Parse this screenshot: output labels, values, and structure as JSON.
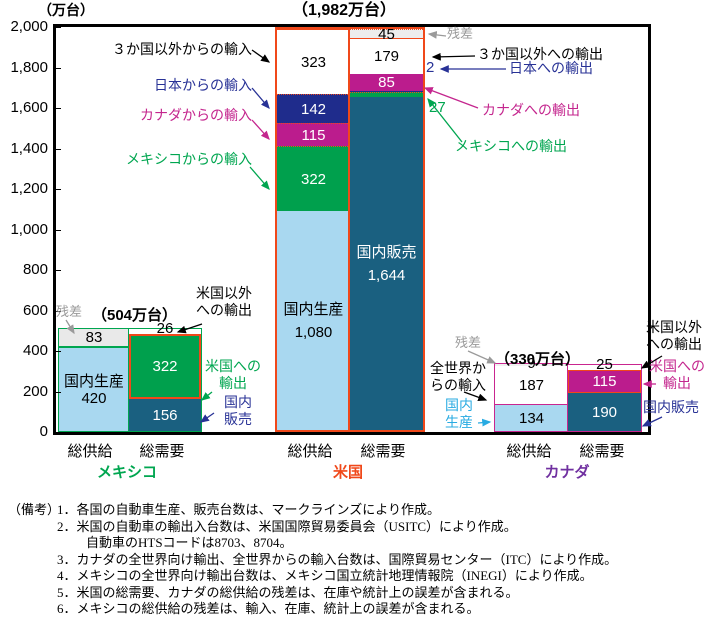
{
  "chart_data": {
    "type": "bar",
    "stacked": true,
    "unit_label": "（万台）",
    "ylabel": "",
    "ylim": [
      0,
      2000
    ],
    "ytick_step": 200,
    "yticks": [
      "0",
      "200",
      "400",
      "600",
      "800",
      "1,000",
      "1,200",
      "1,400",
      "1,600",
      "1,800",
      "2,000"
    ],
    "grid": false,
    "groups": [
      {
        "id": "mexico",
        "country": "メキシコ",
        "country_color": "#00A650",
        "total_label": "（504万台）",
        "bars": [
          {
            "id": "supply",
            "axis_label": "総供給",
            "total": 503,
            "segments": [
              {
                "name": "国内生産",
                "value": 420,
                "lines": [
                  "国内生産",
                  "420"
                ],
                "fill": "#A9D8F0",
                "text": "#000000",
                "border_top": "2px solid #00A650"
              },
              {
                "name": "残差",
                "value": 83,
                "lines": [
                  "83"
                ],
                "fill": "#E9E9E9",
                "text": "#000000"
              }
            ]
          },
          {
            "id": "demand",
            "axis_label": "総需要",
            "total": 504,
            "segments": [
              {
                "name": "国内販売",
                "value": 156,
                "lines": [
                  "156"
                ],
                "fill": "#1A6080",
                "text": "#FFFFFF"
              },
              {
                "name": "米国への輸出",
                "value": 322,
                "lines": [
                  "322"
                ],
                "fill": "#00A04D",
                "text": "#FFFFFF",
                "dots": true,
                "border": "2px solid #F0481A"
              },
              {
                "name": "米国以外への輸出",
                "value": 26,
                "lines": [
                  "26"
                ],
                "fill": "#FFFFFF",
                "text": "#000000",
                "label_above": true
              }
            ]
          }
        ]
      },
      {
        "id": "us",
        "country": "米国",
        "country_color": "#F0481A",
        "total_label": "（1,982万台）",
        "bars": [
          {
            "id": "supply",
            "axis_label": "総供給",
            "total": 1982,
            "segments": [
              {
                "name": "国内生産",
                "value": 1080,
                "lines": [
                  "国内生産",
                  "1,080"
                ],
                "fill": "#A9D8F0",
                "text": "#000000",
                "big": true
              },
              {
                "name": "メキシコからの輸入",
                "value": 322,
                "lines": [
                  "322"
                ],
                "fill": "#00A04D",
                "text": "#FFFFFF",
                "dots": true,
                "border_top": "1px dotted #F0481A"
              },
              {
                "name": "カナダからの輸入",
                "value": 115,
                "lines": [
                  "115"
                ],
                "fill": "#BB1C8D",
                "text": "#FFFFFF",
                "border_top": "1px dotted #F0481A"
              },
              {
                "name": "日本からの輸入",
                "value": 142,
                "lines": [
                  "142"
                ],
                "fill": "#1F2C8C",
                "text": "#FFFFFF",
                "dots": true,
                "border_top": "1px dotted #F0481A"
              },
              {
                "name": "３か国以外からの輸入",
                "value": 323,
                "lines": [
                  "323"
                ],
                "fill": "#FFFFFF",
                "text": "#000000",
                "border_top": "1px solid #F0481A"
              }
            ]
          },
          {
            "id": "demand",
            "axis_label": "総需要",
            "total": 1982,
            "segments": [
              {
                "name": "国内販売",
                "value": 1644,
                "lines": [
                  "国内販売",
                  "1,644"
                ],
                "fill": "#1A6080",
                "text": "#FFFFFF",
                "big": true
              },
              {
                "name": "メキシコへの輸出",
                "value": 27,
                "fill": "#00A04D",
                "dots": true,
                "border_top": "1px dotted #F0481A"
              },
              {
                "name": "日本への輸出",
                "value": 2,
                "fill": "#1F2C8C"
              },
              {
                "name": "カナダへの輸出",
                "value": 85,
                "lines": [
                  "85"
                ],
                "fill": "#BB1C8D",
                "text": "#FFFFFF"
              },
              {
                "name": "３か国以外への輸出",
                "value": 179,
                "lines": [
                  "179"
                ],
                "fill": "#FFFFFF",
                "text": "#000000",
                "border_top": "1px solid #F0481A"
              },
              {
                "name": "残差",
                "value": 45,
                "lines": [
                  "45"
                ],
                "fill": "#EDEDED",
                "text": "#000000",
                "border_top": "1px dotted #F0481A"
              }
            ]
          }
        ]
      },
      {
        "id": "canada",
        "country": "カナダ",
        "country_color": "#7030A0",
        "total_label": "（330万台）",
        "bars": [
          {
            "id": "supply",
            "axis_label": "総供給",
            "total": 330,
            "segments": [
              {
                "name": "国内生産",
                "value": 134,
                "lines": [
                  "134"
                ],
                "fill": "#A9D8F0",
                "text": "#000000",
                "border_top": "1.5px solid #C9258F"
              },
              {
                "name": "全世界からの輸入",
                "value": 187,
                "lines": [
                  "187"
                ],
                "fill": "#FFFFFF",
                "text": "#000000"
              },
              {
                "name": "残差",
                "value": 9,
                "lines": [
                  "9"
                ],
                "fill": "#F0F0F0",
                "text": "#000000",
                "label_above": true
              }
            ]
          },
          {
            "id": "demand",
            "axis_label": "総需要",
            "total": 330,
            "segments": [
              {
                "name": "国内販売",
                "value": 190,
                "lines": [
                  "190"
                ],
                "fill": "#1A6080",
                "text": "#FFFFFF"
              },
              {
                "name": "米国への輸出",
                "value": 115,
                "lines": [
                  "115"
                ],
                "fill": "#BB1C8D",
                "text": "#FFFFFF",
                "border": "1.5px solid #F0481A"
              },
              {
                "name": "米国以外への輸出",
                "value": 25,
                "lines": [
                  "25"
                ],
                "fill": "#FFFFFF",
                "text": "#000000",
                "label_above": true
              }
            ]
          }
        ]
      }
    ],
    "annotations": {
      "residual": "残差",
      "imports_other": "３か国以外からの輸入",
      "imports_japan": "日本からの輸入",
      "imports_canada": "カナダからの輸入",
      "imports_mexico": "メキシコからの輸入",
      "exports_other": "３か国以外への輸出",
      "exports_japan": "日本への輸出",
      "exports_canada": "カナダへの輸出",
      "exports_mexico": "メキシコへの輸出",
      "mx_exports_other_l1": "米国以外",
      "mx_exports_other_l2": "への輸出",
      "mx_exports_us_l1": "米国への",
      "mx_exports_us_l2": "輸出",
      "mx_domestic_sales_l1": "国内",
      "mx_domestic_sales_l2": "販売",
      "ca_imports_world_l1": "全世界か",
      "ca_imports_world_l2": "らの輸入",
      "ca_domestic_prod_l1": "国内",
      "ca_domestic_prod_l2": "生産",
      "ca_exports_other_l1": "米国以外",
      "ca_exports_other_l2": "への輸出",
      "ca_exports_us_l1": "米国への",
      "ca_exports_us_l2": "輸出",
      "ca_domestic_sales": "国内販売"
    },
    "colors": {
      "mexico_green": "#00A650",
      "us_orange": "#F0481A",
      "canada_magenta": "#C9258F",
      "canada_purple": "#7030A0",
      "japan_navy": "#1F2C8C",
      "domestic_production_lightblue": "#A9D8F0",
      "domestic_sales_teal": "#1A6080",
      "residual_gray": "#E9E9E9"
    }
  },
  "notes": {
    "label": "（備考）",
    "lines": [
      "1．各国の自動車生産、販売台数は、マークラインズにより作成。",
      "2．米国の自動車の輸出入台数は、米国国際貿易委員会（USITC）により作成。",
      "自動車のHTSコードは8703、8704。",
      "3．カナダの全世界向け輸出、全世界からの輸入台数は、国際貿易センター（ITC）により作成。",
      "4．メキシコの全世界向け輸出台数は、メキシコ国立統計地理情報院（INEGI）により作成。",
      "5．米国の総需要、カナダの総供給の残差は、在庫や統計上の誤差が含まれる。",
      "6．メキシコの総供給の残差は、輸入、在庫、統計上の誤差が含まれる。"
    ]
  }
}
